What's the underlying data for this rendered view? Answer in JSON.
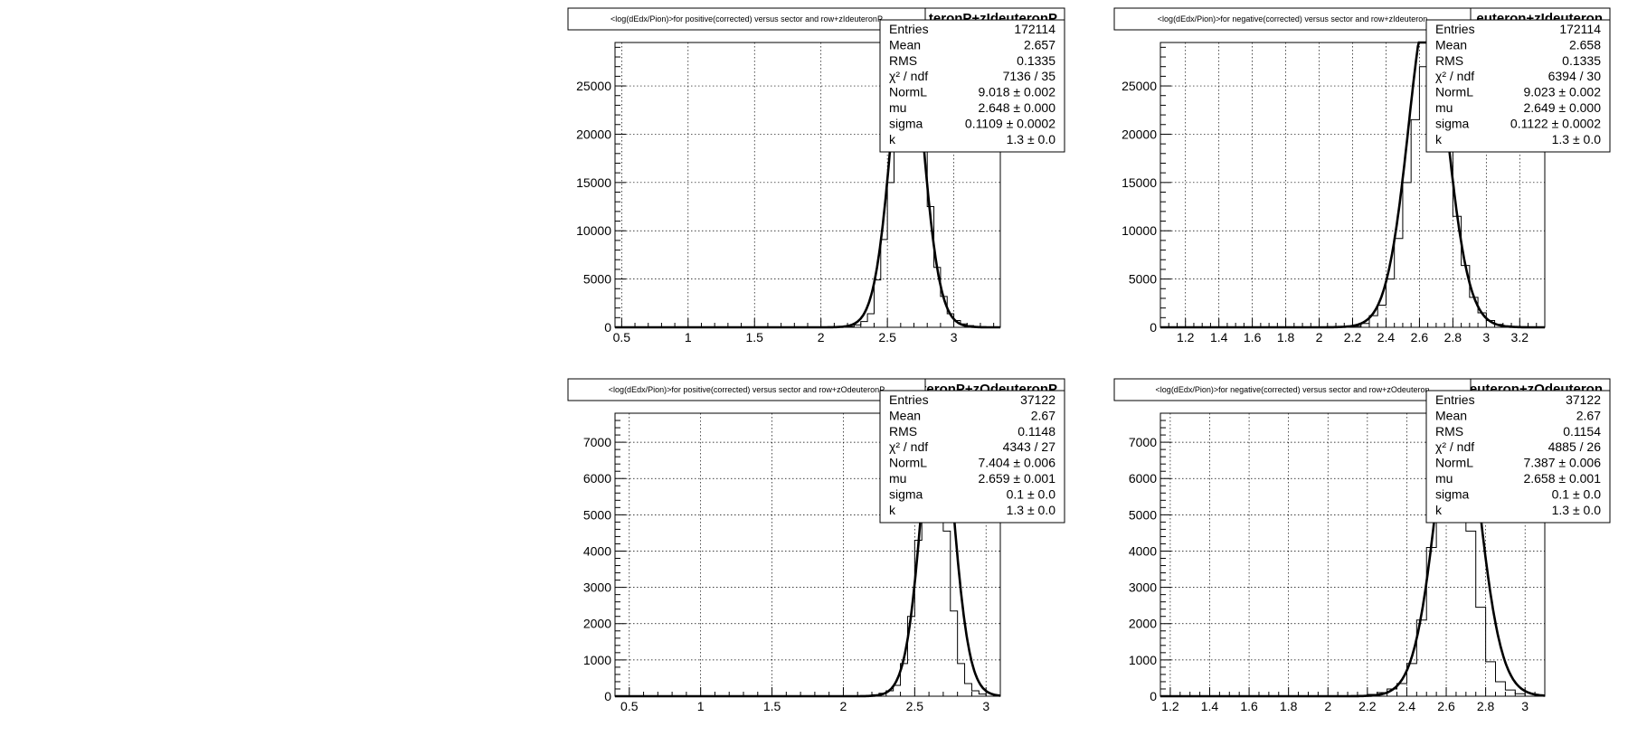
{
  "chart_data": [
    {
      "type": "bar",
      "title": "<log(dEdx/Pion)>for positive(corrected) versus sector and row+zIdeuteronP",
      "histogram_name": "teronP+zIdeuteronP",
      "xlim": [
        0.45,
        3.35
      ],
      "ylim": [
        0,
        29500
      ],
      "x_ticks": [
        0.5,
        1,
        1.5,
        2,
        2.5,
        3
      ],
      "x_tick_labels": [
        "0.5",
        "1",
        "1.5",
        "2",
        "2.5",
        "3"
      ],
      "y_ticks": [
        0,
        5000,
        10000,
        15000,
        20000,
        25000
      ],
      "y_tick_labels": [
        "0",
        "5000",
        "10000",
        "15000",
        "20000",
        "25000"
      ],
      "grid": true,
      "legend": "top-right",
      "stats": [
        {
          "label": "Entries",
          "value": "172114"
        },
        {
          "label": "Mean",
          "value": "2.657"
        },
        {
          "label": "RMS",
          "value": "0.1335"
        },
        {
          "label": "χ² / ndf",
          "value": "7136 / 35"
        },
        {
          "label": "NormL",
          "value": "9.018 ± 0.002"
        },
        {
          "label": "mu",
          "value": "2.648 ± 0.000"
        },
        {
          "label": "sigma",
          "value": "0.1109 ± 0.0002"
        },
        {
          "label": "k",
          "value": "1.3 ± 0.0"
        }
      ],
      "fit": {
        "mu": 2.648,
        "sigma": 0.1109,
        "amplitude": 33000
      },
      "bins": {
        "start": 2.2,
        "width": 0.05,
        "values": [
          80,
          250,
          600,
          1400,
          4900,
          9100,
          15000,
          22000,
          29500,
          29500,
          28000,
          21000,
          12500,
          6200,
          3200,
          1400,
          700,
          350,
          180,
          80,
          40,
          20,
          10
        ]
      }
    },
    {
      "type": "bar",
      "title": "<log(dEdx/Pion)>for negative(corrected) versus sector and row+zIdeuteron",
      "histogram_name": "euteron+zIdeuteron",
      "xlim": [
        1.05,
        3.35
      ],
      "ylim": [
        0,
        29500
      ],
      "x_ticks": [
        1.2,
        1.4,
        1.6,
        1.8,
        2,
        2.2,
        2.4,
        2.6,
        2.8,
        3,
        3.2
      ],
      "x_tick_labels": [
        "1.2",
        "1.4",
        "1.6",
        "1.8",
        "2",
        "2.2",
        "2.4",
        "2.6",
        "2.8",
        "3",
        "3.2"
      ],
      "y_ticks": [
        0,
        5000,
        10000,
        15000,
        20000,
        25000
      ],
      "y_tick_labels": [
        "0",
        "5000",
        "10000",
        "15000",
        "20000",
        "25000"
      ],
      "grid": true,
      "legend": "top-right",
      "stats": [
        {
          "label": "Entries",
          "value": "172114"
        },
        {
          "label": "Mean",
          "value": "2.658"
        },
        {
          "label": "RMS",
          "value": "0.1335"
        },
        {
          "label": "χ² / ndf",
          "value": "6394 / 30"
        },
        {
          "label": "NormL",
          "value": "9.023 ± 0.002"
        },
        {
          "label": "mu",
          "value": "2.649 ± 0.000"
        },
        {
          "label": "sigma",
          "value": "0.1122 ± 0.0002"
        },
        {
          "label": "k",
          "value": "1.3 ± 0.0"
        }
      ],
      "fit": {
        "mu": 2.649,
        "sigma": 0.1122,
        "amplitude": 33000
      },
      "bins": {
        "start": 2.2,
        "width": 0.05,
        "values": [
          100,
          400,
          1200,
          2300,
          5000,
          9200,
          15000,
          21500,
          27000,
          29500,
          26000,
          19000,
          11500,
          6400,
          3100,
          1500,
          700,
          300,
          150,
          70
        ]
      }
    },
    {
      "type": "bar",
      "title": "<log(dEdx/Pion)>for positive(corrected) versus sector and row+zOdeuteronP",
      "histogram_name": "teronP+zOdeuteronP",
      "xlim": [
        0.4,
        3.1
      ],
      "ylim": [
        0,
        7800
      ],
      "x_ticks": [
        0.5,
        1,
        1.5,
        2,
        2.5,
        3
      ],
      "x_tick_labels": [
        "0.5",
        "1",
        "1.5",
        "2",
        "2.5",
        "3"
      ],
      "y_ticks": [
        0,
        1000,
        2000,
        3000,
        4000,
        5000,
        6000,
        7000
      ],
      "y_tick_labels": [
        "0",
        "1000",
        "2000",
        "3000",
        "4000",
        "5000",
        "6000",
        "7000"
      ],
      "grid": true,
      "legend": "top-right",
      "stats": [
        {
          "label": "Entries",
          "value": "37122"
        },
        {
          "label": "Mean",
          "value": "2.67"
        },
        {
          "label": "RMS",
          "value": "0.1148"
        },
        {
          "label": "χ² / ndf",
          "value": "4343 / 27"
        },
        {
          "label": "NormL",
          "value": "7.404 ± 0.006"
        },
        {
          "label": "mu",
          "value": "2.659 ± 0.001"
        },
        {
          "label": "sigma",
          "value": "0.1 ± 0.0"
        },
        {
          "label": "k",
          "value": "1.3 ± 0.0"
        }
      ],
      "fit": {
        "mu": 2.659,
        "sigma": 0.1,
        "amplitude": 9000
      },
      "bins": {
        "start": 2.2,
        "width": 0.05,
        "values": [
          40,
          80,
          150,
          300,
          900,
          2200,
          4300,
          7800,
          7800,
          7600,
          4550,
          2350,
          900,
          350,
          150,
          60
        ]
      }
    },
    {
      "type": "bar",
      "title": "<log(dEdx/Pion)>for negative(corrected) versus sector and row+zOdeuteron",
      "histogram_name": "euteron+zOdeuteron",
      "xlim": [
        1.15,
        3.1
      ],
      "ylim": [
        0,
        7800
      ],
      "x_ticks": [
        1.2,
        1.4,
        1.6,
        1.8,
        2,
        2.2,
        2.4,
        2.6,
        2.8,
        3
      ],
      "x_tick_labels": [
        "1.2",
        "1.4",
        "1.6",
        "1.8",
        "2",
        "2.2",
        "2.4",
        "2.6",
        "2.8",
        "3"
      ],
      "y_ticks": [
        0,
        1000,
        2000,
        3000,
        4000,
        5000,
        6000,
        7000
      ],
      "y_tick_labels": [
        "0",
        "1000",
        "2000",
        "3000",
        "4000",
        "5000",
        "6000",
        "7000"
      ],
      "grid": true,
      "legend": "top-right",
      "stats": [
        {
          "label": "Entries",
          "value": "37122"
        },
        {
          "label": "Mean",
          "value": "2.67"
        },
        {
          "label": "RMS",
          "value": "0.1154"
        },
        {
          "label": "χ² / ndf",
          "value": "4885 / 26"
        },
        {
          "label": "NormL",
          "value": "7.387 ± 0.006"
        },
        {
          "label": "mu",
          "value": "2.658 ± 0.001"
        },
        {
          "label": "sigma",
          "value": "0.1 ± 0.0"
        },
        {
          "label": "k",
          "value": "1.3 ± 0.0"
        }
      ],
      "fit": {
        "mu": 2.658,
        "sigma": 0.1,
        "amplitude": 9000
      },
      "bins": {
        "start": 2.2,
        "width": 0.05,
        "values": [
          50,
          100,
          200,
          350,
          900,
          2100,
          4100,
          7600,
          7800,
          7300,
          4550,
          2450,
          950,
          400,
          170,
          70
        ]
      }
    }
  ]
}
